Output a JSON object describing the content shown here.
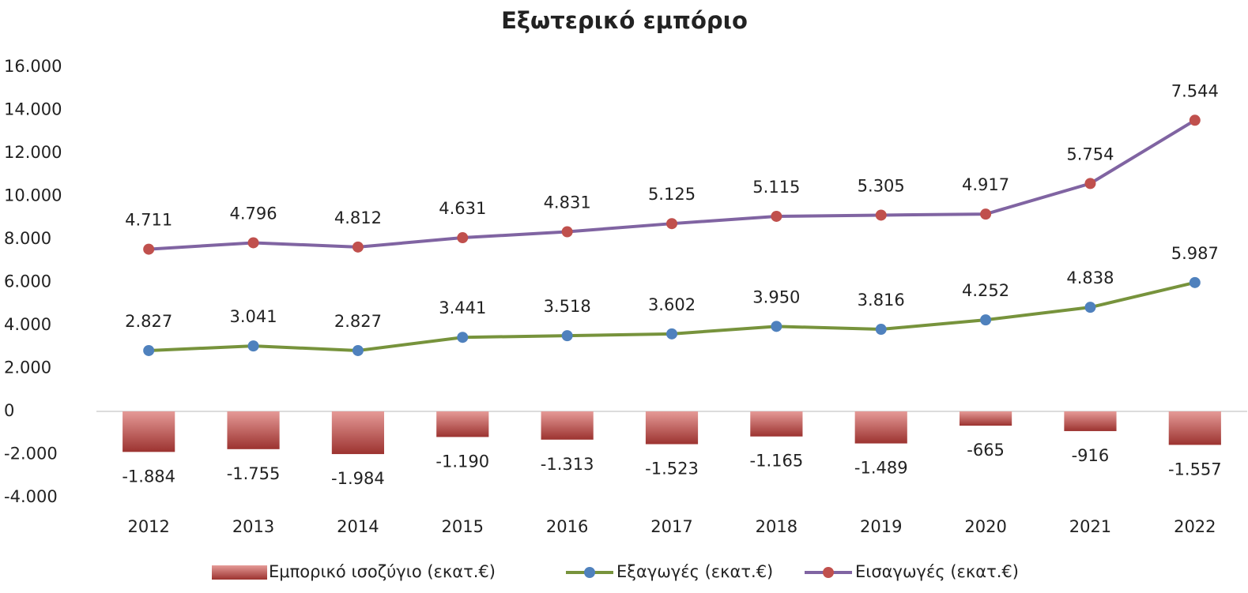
{
  "chart_data": {
    "type": "combo",
    "title": "Εξωτερικό εμπόριο",
    "categories": [
      "2012",
      "2013",
      "2014",
      "2015",
      "2016",
      "2017",
      "2018",
      "2019",
      "2020",
      "2021",
      "2022"
    ],
    "series": [
      {
        "name": "Εμπορικό ισοζύγιο (εκατ.€)",
        "type": "bar",
        "color": "#c0504d",
        "values": [
          -1884,
          -1755,
          -1984,
          -1190,
          -1313,
          -1523,
          -1165,
          -1489,
          -665,
          -916,
          -1557
        ],
        "value_labels": [
          "-1.884",
          "-1.755",
          "-1.984",
          "-1.190",
          "-1.313",
          "-1.523",
          "-1.165",
          "-1.489",
          "-665",
          "-916",
          "-1.557"
        ]
      },
      {
        "name": "Εξαγωγές (εκατ.€)",
        "type": "line",
        "color": "#77933c",
        "marker_color": "#4f81bd",
        "values": [
          2827,
          3041,
          2827,
          3441,
          3518,
          3602,
          3950,
          3816,
          4252,
          4838,
          5987
        ],
        "value_labels": [
          "2.827",
          "3.041",
          "2.827",
          "3.441",
          "3.518",
          "3.602",
          "3.950",
          "3.816",
          "4.252",
          "4.838",
          "5.987"
        ]
      },
      {
        "name": "Εισαγωγές (εκατ.€)",
        "type": "line",
        "color": "#8064a2",
        "marker_color": "#c0504d",
        "stacked": true,
        "values": [
          4711,
          4796,
          4812,
          4631,
          4831,
          5125,
          5115,
          5305,
          4917,
          5754,
          7544
        ],
        "value_labels": [
          "4.711",
          "4.796",
          "4.812",
          "4.631",
          "4.831",
          "5.125",
          "5.115",
          "5.305",
          "4.917",
          "5.754",
          "7.544"
        ]
      }
    ],
    "ylim": [
      -4000,
      16000
    ],
    "yticks": [
      {
        "value": -4000,
        "label": "-4.000"
      },
      {
        "value": -2000,
        "label": "-2.000"
      },
      0,
      {
        "value": 2000,
        "label": "2.000"
      },
      {
        "value": 4000,
        "label": "4.000"
      },
      {
        "value": 6000,
        "label": "6.000"
      },
      {
        "value": 8000,
        "label": "8.000"
      },
      {
        "value": 10000,
        "label": "10.000"
      },
      {
        "value": 12000,
        "label": "12.000"
      },
      {
        "value": 14000,
        "label": "14.000"
      },
      {
        "value": 16000,
        "label": "16.000"
      }
    ],
    "legend": "bottom"
  }
}
